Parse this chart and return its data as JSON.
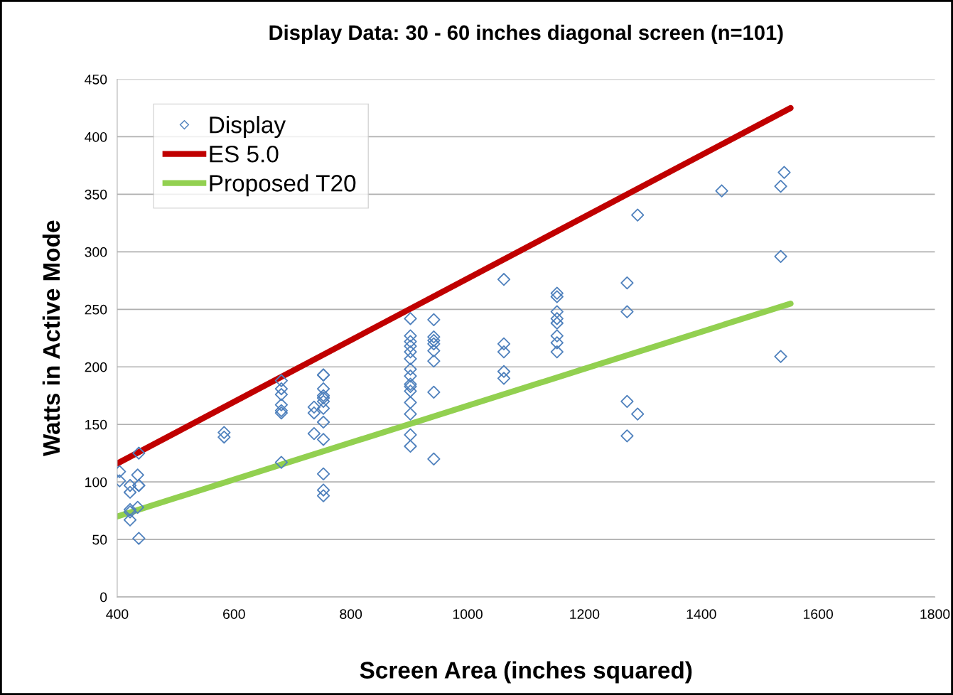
{
  "chart_data": {
    "type": "scatter",
    "title": "Display Data: 30 - 60 inches diagonal screen (n=101)",
    "xlabel": "Screen Area (inches squared)",
    "ylabel": "Watts in Active Mode",
    "xlim": [
      400,
      1800
    ],
    "xticks": [
      400,
      600,
      800,
      1000,
      1200,
      1400,
      1600,
      1800
    ],
    "ylim": [
      0,
      450
    ],
    "yticks": [
      0,
      50,
      100,
      150,
      200,
      250,
      300,
      350,
      400,
      450
    ],
    "grid": "y",
    "legend": "top left",
    "series": [
      {
        "name": "Display",
        "marker": "diamond",
        "color": "#4f81bd",
        "x": [
          404,
          404,
          422,
          422,
          422,
          422,
          422,
          437,
          435,
          437,
          435,
          437,
          437,
          583,
          583,
          681,
          681,
          681,
          681,
          681,
          681,
          681,
          737,
          737,
          737,
          753,
          753,
          753,
          753,
          753,
          753,
          753,
          753,
          753,
          753,
          753,
          753,
          902,
          902,
          902,
          902,
          902,
          902,
          902,
          902,
          902,
          902,
          902,
          902,
          902,
          902,
          902,
          942,
          942,
          942,
          942,
          942,
          942,
          942,
          942,
          1062,
          1062,
          1062,
          1062,
          1062,
          1153,
          1153,
          1153,
          1153,
          1153,
          1153,
          1153,
          1153,
          1273,
          1273,
          1273,
          1291,
          1273,
          1291,
          1435,
          1536,
          1536,
          1536,
          1542
        ],
        "values": [
          109,
          101,
          97,
          91,
          76,
          74,
          67,
          125,
          106,
          97,
          78,
          51,
          97,
          143,
          139,
          188,
          181,
          176,
          167,
          162,
          160,
          117,
          165,
          160,
          142,
          193,
          193,
          181,
          175,
          173,
          170,
          164,
          152,
          137,
          107,
          93,
          88,
          242,
          227,
          222,
          218,
          213,
          207,
          198,
          192,
          185,
          183,
          179,
          169,
          159,
          141,
          131,
          241,
          226,
          223,
          220,
          214,
          205,
          178,
          120,
          276,
          220,
          213,
          196,
          190,
          264,
          261,
          248,
          242,
          238,
          227,
          221,
          213,
          273,
          248,
          170,
          159,
          140,
          332,
          353,
          357,
          296,
          209,
          369
        ]
      },
      {
        "name": "ES 5.0",
        "type": "line",
        "marker": "none",
        "color": "#c00000",
        "x": [
          400,
          1553
        ],
        "values": [
          116,
          425
        ]
      },
      {
        "name": "Proposed T20",
        "type": "line",
        "marker": "none",
        "color": "#92d050",
        "x": [
          400,
          1553
        ],
        "values": [
          70,
          255
        ]
      }
    ]
  }
}
